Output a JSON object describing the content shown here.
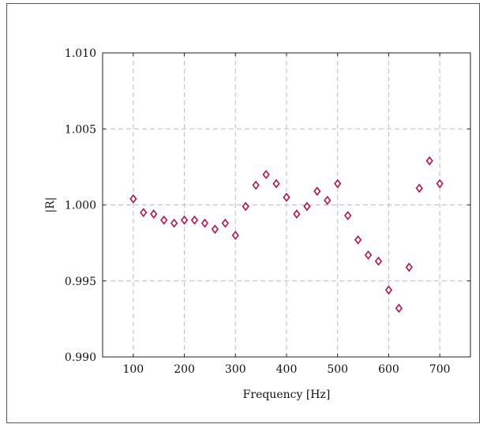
{
  "chart_data": {
    "type": "scatter",
    "xlabel": "Frequency [Hz]",
    "ylabel": "|R|",
    "xlim": [
      40,
      760
    ],
    "ylim": [
      0.99,
      1.01
    ],
    "xticks": [
      100,
      200,
      300,
      400,
      500,
      600,
      700
    ],
    "yticks": [
      0.99,
      0.995,
      1.0,
      1.005,
      1.01
    ],
    "ytick_labels": [
      "0.990",
      "0.995",
      "1.000",
      "1.005",
      "1.010"
    ],
    "grid": true,
    "marker_color": "#b3124f",
    "marker": "diamond-open",
    "series": [
      {
        "x": [
          100,
          120,
          140,
          160,
          180,
          200,
          220,
          240,
          260,
          280,
          300,
          320,
          340,
          360,
          380,
          400,
          420,
          440,
          460,
          480,
          500,
          520,
          540,
          560,
          580,
          600,
          620,
          640,
          660,
          680,
          700
        ],
        "y": [
          1.0004,
          0.9995,
          0.9994,
          0.999,
          0.9988,
          0.999,
          0.999,
          0.9988,
          0.9984,
          0.9988,
          0.998,
          0.9999,
          1.0013,
          1.002,
          1.0014,
          1.0005,
          0.9994,
          0.9999,
          1.0009,
          1.0003,
          1.0014,
          0.9993,
          0.9977,
          0.9967,
          0.9963,
          0.9944,
          0.9932,
          0.9959,
          1.0011,
          1.0029,
          1.0014
        ]
      }
    ]
  }
}
